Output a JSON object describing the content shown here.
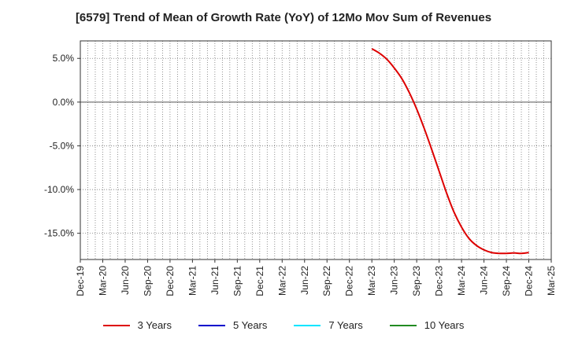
{
  "chart_data": {
    "type": "line",
    "title": "[6579]  Trend of Mean of Growth Rate (YoY) of 12Mo Mov Sum of Revenues",
    "xlabel": "",
    "ylabel": "",
    "ylim": [
      -18,
      7
    ],
    "yticks": [
      5.0,
      0.0,
      -5.0,
      -10.0,
      -15.0
    ],
    "ytick_labels": [
      "5.0%",
      "0.0%",
      "-5.0%",
      "-10.0%",
      "-15.0%"
    ],
    "xtick_labels": [
      "Dec-19",
      "Mar-20",
      "Jun-20",
      "Sep-20",
      "Dec-20",
      "Mar-21",
      "Jun-21",
      "Sep-21",
      "Dec-21",
      "Mar-22",
      "Jun-22",
      "Sep-22",
      "Dec-22",
      "Mar-23",
      "Jun-23",
      "Sep-23",
      "Dec-23",
      "Mar-24",
      "Jun-24",
      "Sep-24",
      "Dec-24",
      "Mar-25"
    ],
    "grid": true,
    "legend_position": "bottom",
    "series": [
      {
        "name": "3 Years",
        "color": "#dd0000",
        "x": [
          "Mar-23",
          "Apr-23",
          "May-23",
          "Jun-23",
          "Jul-23",
          "Aug-23",
          "Sep-23",
          "Oct-23",
          "Nov-23",
          "Dec-23",
          "Jan-24",
          "Feb-24",
          "Mar-24",
          "Apr-24",
          "May-24",
          "Jun-24",
          "Jul-24",
          "Aug-24",
          "Sep-24",
          "Oct-24",
          "Nov-24",
          "Dec-24"
        ],
        "values": [
          6.1,
          5.6,
          4.9,
          3.9,
          2.7,
          1.1,
          -0.8,
          -3.0,
          -5.4,
          -7.9,
          -10.4,
          -12.6,
          -14.3,
          -15.6,
          -16.4,
          -16.9,
          -17.2,
          -17.3,
          -17.3,
          -17.25,
          -17.3,
          -17.2
        ]
      },
      {
        "name": "5 Years",
        "color": "#0000cc",
        "x": [],
        "values": []
      },
      {
        "name": "7 Years",
        "color": "#00e5ff",
        "x": [],
        "values": []
      },
      {
        "name": "10 Years",
        "color": "#228b22",
        "x": [],
        "values": []
      }
    ]
  }
}
